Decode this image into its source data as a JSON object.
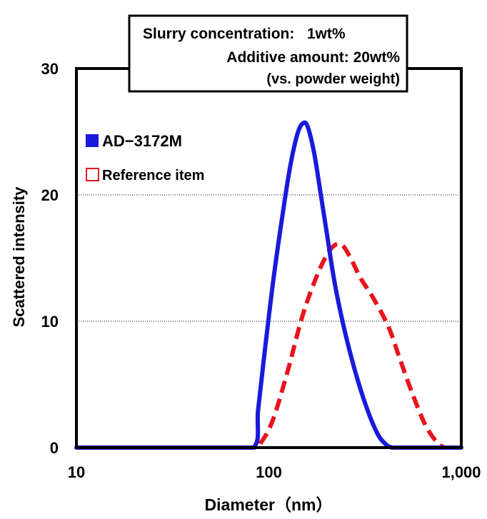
{
  "chart_data": {
    "type": "line",
    "xscale": "log",
    "xlim": [
      10,
      1000
    ],
    "ylim": [
      0,
      30
    ],
    "x_ticks": [
      10,
      100,
      1000
    ],
    "x_tick_labels": [
      "10",
      "100",
      "1,000"
    ],
    "y_ticks": [
      0,
      10,
      20,
      30
    ],
    "y_tick_labels": [
      "0",
      "10",
      "20",
      "30"
    ],
    "xlabel": "Diameter（nm）",
    "ylabel": "Scattered intensity",
    "grid": "horizontal dotted",
    "legend_position": "top-left",
    "annotation": {
      "line1": "Slurry concentration:   1wt%",
      "line2": "Additive amount: 20wt%",
      "line3": "(vs. powder weight)"
    },
    "series": [
      {
        "name": "AD−3172M",
        "color": "#1a1adc",
        "style": "solid",
        "x": [
          10,
          50,
          83,
          88,
          95,
          105,
          118,
          130,
          142,
          152,
          160,
          172,
          185,
          200,
          220,
          250,
          285,
          325,
          370,
          410,
          440,
          470,
          1000
        ],
        "y": [
          0,
          0,
          0,
          3,
          7.5,
          13,
          18.5,
          22.5,
          25,
          25.7,
          25.3,
          23.3,
          20.3,
          17,
          13,
          9,
          5.7,
          3,
          1,
          0.2,
          0,
          0,
          0
        ]
      },
      {
        "name": "Reference item",
        "color": "#e8141e",
        "style": "dashed",
        "x": [
          10,
          50,
          83,
          92,
          105,
          125,
          150,
          180,
          205,
          225,
          245,
          270,
          300,
          350,
          420,
          480,
          550,
          650,
          750,
          820,
          850,
          1000
        ],
        "y": [
          0,
          0,
          0,
          0.5,
          2.2,
          6,
          10.5,
          13.8,
          15.5,
          16.1,
          15.9,
          14.8,
          13.4,
          11.8,
          9.5,
          7,
          4.5,
          1.8,
          0.4,
          0,
          0,
          0
        ]
      }
    ]
  }
}
